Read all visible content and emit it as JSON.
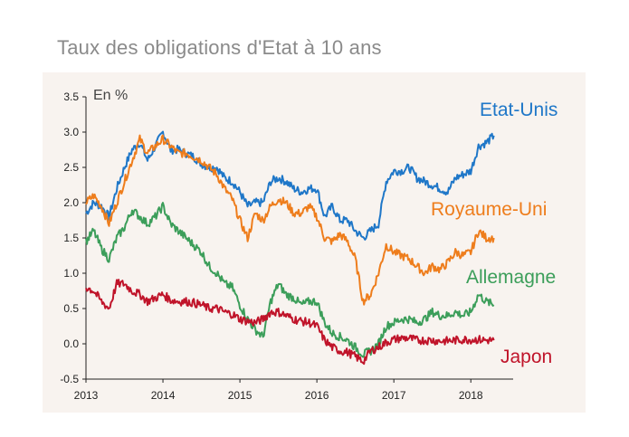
{
  "title": "Taux des obligations d'Etat à 10 ans",
  "chart_data": {
    "type": "line",
    "title": "Taux des obligations d'Etat à 10 ans",
    "unit_label": "En %",
    "xlabel": "",
    "ylabel": "",
    "xlim": [
      2013.0,
      2018.55
    ],
    "ylim": [
      -0.5,
      3.5
    ],
    "x_ticks": [
      2013,
      2014,
      2015,
      2016,
      2017,
      2018
    ],
    "y_ticks": [
      -0.5,
      0.0,
      0.5,
      1.0,
      1.5,
      2.0,
      2.5,
      3.0,
      3.5
    ],
    "y_tick_labels": [
      "-0.5",
      "0.0",
      "0.5",
      "1.0",
      "1.5",
      "2.0",
      "2.5",
      "3.0",
      "3.5"
    ],
    "grid": false,
    "legend": "inline labels",
    "series": [
      {
        "name": "Etat-Unis",
        "color": "#1f77c8",
        "x": [
          2013.0,
          2013.1,
          2013.2,
          2013.3,
          2013.4,
          2013.5,
          2013.6,
          2013.7,
          2013.8,
          2013.9,
          2014.0,
          2014.1,
          2014.2,
          2014.3,
          2014.4,
          2014.5,
          2014.6,
          2014.7,
          2014.8,
          2014.9,
          2015.0,
          2015.1,
          2015.2,
          2015.3,
          2015.4,
          2015.5,
          2015.6,
          2015.7,
          2015.8,
          2015.9,
          2016.0,
          2016.1,
          2016.2,
          2016.3,
          2016.4,
          2016.5,
          2016.6,
          2016.7,
          2016.8,
          2016.9,
          2017.0,
          2017.1,
          2017.2,
          2017.3,
          2017.4,
          2017.5,
          2017.6,
          2017.7,
          2017.8,
          2017.9,
          2018.0,
          2018.1,
          2018.2,
          2018.3
        ],
        "y": [
          1.85,
          2.0,
          1.95,
          1.8,
          2.2,
          2.5,
          2.75,
          2.85,
          2.6,
          2.8,
          3.0,
          2.75,
          2.75,
          2.7,
          2.65,
          2.55,
          2.5,
          2.5,
          2.35,
          2.3,
          2.15,
          1.95,
          2.0,
          2.0,
          2.3,
          2.35,
          2.3,
          2.2,
          2.15,
          2.2,
          2.2,
          1.8,
          1.95,
          1.75,
          1.75,
          1.6,
          1.5,
          1.6,
          1.7,
          2.3,
          2.45,
          2.45,
          2.5,
          2.35,
          2.3,
          2.25,
          2.2,
          2.15,
          2.35,
          2.4,
          2.45,
          2.8,
          2.85,
          2.95
        ]
      },
      {
        "name": "Royaume-Uni",
        "color": "#ee7d1c",
        "x": [
          2013.0,
          2013.1,
          2013.2,
          2013.3,
          2013.4,
          2013.5,
          2013.6,
          2013.7,
          2013.8,
          2013.9,
          2014.0,
          2014.1,
          2014.2,
          2014.3,
          2014.4,
          2014.5,
          2014.6,
          2014.7,
          2014.8,
          2014.9,
          2015.0,
          2015.1,
          2015.2,
          2015.3,
          2015.4,
          2015.5,
          2015.6,
          2015.7,
          2015.8,
          2015.9,
          2016.0,
          2016.1,
          2016.2,
          2016.3,
          2016.4,
          2016.5,
          2016.6,
          2016.7,
          2016.8,
          2016.9,
          2017.0,
          2017.1,
          2017.2,
          2017.3,
          2017.4,
          2017.5,
          2017.6,
          2017.7,
          2017.8,
          2017.9,
          2018.0,
          2018.1,
          2018.2,
          2018.3
        ],
        "y": [
          2.0,
          2.1,
          1.95,
          1.7,
          2.0,
          2.3,
          2.6,
          2.9,
          2.7,
          2.8,
          2.9,
          2.8,
          2.7,
          2.7,
          2.65,
          2.6,
          2.5,
          2.4,
          2.2,
          2.05,
          1.75,
          1.5,
          1.85,
          1.75,
          1.95,
          2.05,
          2.0,
          1.85,
          1.85,
          1.95,
          1.8,
          1.5,
          1.45,
          1.55,
          1.45,
          1.2,
          0.6,
          0.7,
          1.0,
          1.4,
          1.3,
          1.25,
          1.2,
          1.1,
          1.0,
          1.1,
          1.05,
          1.15,
          1.3,
          1.25,
          1.3,
          1.6,
          1.5,
          1.5
        ]
      },
      {
        "name": "Allemagne",
        "color": "#3c9e5a",
        "x": [
          2013.0,
          2013.1,
          2013.2,
          2013.3,
          2013.4,
          2013.5,
          2013.6,
          2013.7,
          2013.8,
          2013.9,
          2014.0,
          2014.1,
          2014.2,
          2014.3,
          2014.4,
          2014.5,
          2014.6,
          2014.7,
          2014.8,
          2014.9,
          2015.0,
          2015.1,
          2015.2,
          2015.3,
          2015.4,
          2015.5,
          2015.6,
          2015.7,
          2015.8,
          2015.9,
          2016.0,
          2016.1,
          2016.2,
          2016.3,
          2016.4,
          2016.5,
          2016.6,
          2016.7,
          2016.8,
          2016.9,
          2017.0,
          2017.1,
          2017.2,
          2017.3,
          2017.4,
          2017.5,
          2017.6,
          2017.7,
          2017.8,
          2017.9,
          2018.0,
          2018.1,
          2018.2,
          2018.3
        ],
        "y": [
          1.45,
          1.6,
          1.35,
          1.2,
          1.5,
          1.65,
          1.9,
          1.8,
          1.7,
          1.8,
          1.95,
          1.7,
          1.6,
          1.5,
          1.4,
          1.3,
          1.1,
          1.0,
          0.85,
          0.8,
          0.55,
          0.35,
          0.2,
          0.1,
          0.6,
          0.85,
          0.7,
          0.65,
          0.55,
          0.6,
          0.6,
          0.3,
          0.15,
          0.1,
          0.05,
          -0.05,
          -0.15,
          -0.1,
          0.0,
          0.25,
          0.3,
          0.35,
          0.35,
          0.3,
          0.35,
          0.45,
          0.4,
          0.4,
          0.45,
          0.4,
          0.45,
          0.7,
          0.6,
          0.55
        ]
      },
      {
        "name": "Japon",
        "color": "#c0142a",
        "x": [
          2013.0,
          2013.1,
          2013.2,
          2013.3,
          2013.4,
          2013.5,
          2013.6,
          2013.7,
          2013.8,
          2013.9,
          2014.0,
          2014.1,
          2014.2,
          2014.3,
          2014.4,
          2014.5,
          2014.6,
          2014.7,
          2014.8,
          2014.9,
          2015.0,
          2015.1,
          2015.2,
          2015.3,
          2015.4,
          2015.5,
          2015.6,
          2015.7,
          2015.8,
          2015.9,
          2016.0,
          2016.1,
          2016.2,
          2016.3,
          2016.4,
          2016.5,
          2016.6,
          2016.7,
          2016.8,
          2016.9,
          2017.0,
          2017.1,
          2017.2,
          2017.3,
          2017.4,
          2017.5,
          2017.6,
          2017.7,
          2017.8,
          2017.9,
          2018.0,
          2018.1,
          2018.2,
          2018.3
        ],
        "y": [
          0.8,
          0.75,
          0.6,
          0.5,
          0.85,
          0.85,
          0.75,
          0.7,
          0.6,
          0.65,
          0.7,
          0.62,
          0.6,
          0.6,
          0.58,
          0.55,
          0.5,
          0.5,
          0.45,
          0.42,
          0.35,
          0.32,
          0.3,
          0.35,
          0.45,
          0.45,
          0.4,
          0.35,
          0.32,
          0.3,
          0.25,
          0.05,
          -0.05,
          -0.1,
          -0.12,
          -0.18,
          -0.25,
          -0.1,
          -0.05,
          0.02,
          0.06,
          0.08,
          0.08,
          0.05,
          0.05,
          0.05,
          0.04,
          0.04,
          0.05,
          0.06,
          0.06,
          0.06,
          0.05,
          0.05
        ]
      }
    ]
  }
}
